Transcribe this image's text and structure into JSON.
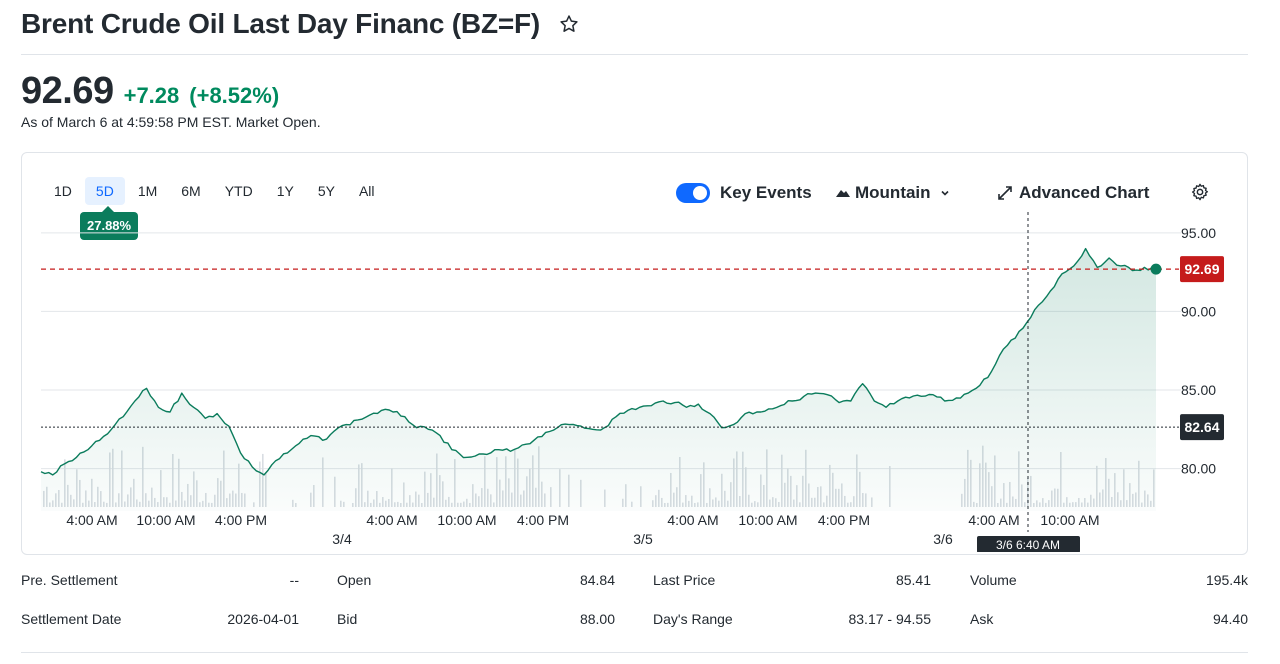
{
  "header": {
    "title": "Brent Crude Oil Last Day Financ (BZ=F)",
    "watchlist_icon": "star-outline-icon"
  },
  "quote": {
    "price": "92.69",
    "change": "+7.28",
    "change_percent": "(+8.52%)",
    "as_of": "As of March 6 at 4:59:58 PM EST. Market Open.",
    "up_color": "#008a5e"
  },
  "chart": {
    "ranges": [
      "1D",
      "5D",
      "1M",
      "6M",
      "YTD",
      "1Y",
      "5Y",
      "All"
    ],
    "active_range": "5D",
    "range_change": "27.88%",
    "key_events_label": "Key Events",
    "key_events_on": true,
    "chart_type_label": "Mountain",
    "advanced_chart_label": "Advanced Chart",
    "crosshair_time": "3/6 6:40 AM",
    "line_color": "#0b7c5c",
    "current_marker_color": "#c51b1b"
  },
  "chart_data": {
    "type": "area",
    "title": "",
    "xlabel": "",
    "ylabel": "",
    "ylim": [
      77.3,
      96.2
    ],
    "y_ticks": [
      "95.00",
      "90.00",
      "85.00",
      "80.00"
    ],
    "x_tick_labels": [
      "4:00 AM",
      "10:00 AM",
      "4:00 PM",
      "4:00 AM",
      "10:00 AM",
      "4:00 PM",
      "4:00 AM",
      "10:00 AM",
      "4:00 PM",
      "4:00 AM",
      "10:00 AM"
    ],
    "day_labels": [
      "3/4",
      "3/5",
      "3/6"
    ],
    "current_price_label": "92.69",
    "previous_close_label": "82.64",
    "current_price": 92.69,
    "previous_close": 82.64,
    "series": [
      {
        "values": [
          79.8,
          79.6,
          80.3,
          80.7,
          81.2,
          81.8,
          82.5,
          83.3,
          84.3,
          85.1,
          83.9,
          83.6,
          84.8,
          83.9,
          83.2,
          83.5,
          82.7,
          81.0,
          80.1,
          79.6,
          80.5,
          81.0,
          81.6,
          82.1,
          81.8,
          82.4,
          82.8,
          83.1,
          83.4,
          83.7,
          83.6,
          83.3,
          82.6,
          82.5,
          82.1,
          81.2,
          80.7,
          80.8,
          80.9,
          81.2,
          81.1,
          81.5,
          81.8,
          82.3,
          82.6,
          82.8,
          82.7,
          82.5,
          82.6,
          83.3,
          83.7,
          83.9,
          84.0,
          84.3,
          84.2,
          83.9,
          84.1,
          83.5,
          82.6,
          82.8,
          83.5,
          83.6,
          83.8,
          84.0,
          84.3,
          84.6,
          84.8,
          84.7,
          84.2,
          84.3,
          85.4,
          84.3,
          83.9,
          84.3,
          84.5,
          84.6,
          84.7,
          84.3,
          84.5,
          84.8,
          85.3,
          86.2,
          87.6,
          88.3,
          89.3,
          90.4,
          91.3,
          92.4,
          92.9,
          94.0,
          92.8,
          93.4,
          92.9,
          92.6,
          92.8,
          92.69
        ]
      }
    ],
    "grid": true,
    "legend": "none"
  },
  "stats": {
    "col1": [
      {
        "label": "Pre. Settlement",
        "value": "--"
      },
      {
        "label": "Settlement Date",
        "value": "2026-04-01"
      }
    ],
    "col2": [
      {
        "label": "Open",
        "value": "84.84"
      },
      {
        "label": "Bid",
        "value": "88.00"
      }
    ],
    "col3": [
      {
        "label": "Last Price",
        "value": "85.41"
      },
      {
        "label": "Day's Range",
        "value": "83.17 - 94.55"
      }
    ],
    "col4": [
      {
        "label": "Volume",
        "value": "195.4k"
      },
      {
        "label": "Ask",
        "value": "94.40"
      }
    ]
  }
}
